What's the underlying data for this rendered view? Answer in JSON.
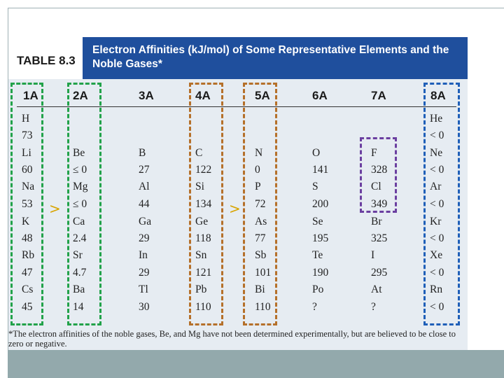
{
  "table": {
    "label": "TABLE 8.3",
    "title": "Electron Affinities (kJ/mol) of Some Representative Elements and the Noble Gases*",
    "columns": [
      {
        "group": "1A",
        "cells": [
          "H",
          "73",
          "Li",
          "60",
          "Na",
          "53",
          "K",
          "48",
          "Rb",
          "47",
          "Cs",
          "45"
        ]
      },
      {
        "group": "2A",
        "cells": [
          "",
          "",
          "Be",
          "≤ 0",
          "Mg",
          "≤ 0",
          "Ca",
          "2.4",
          "Sr",
          "4.7",
          "Ba",
          "14"
        ]
      },
      {
        "group": "3A",
        "cells": [
          "",
          "",
          "B",
          "27",
          "Al",
          "44",
          "Ga",
          "29",
          "In",
          "29",
          "Tl",
          "30"
        ]
      },
      {
        "group": "4A",
        "cells": [
          "",
          "",
          "C",
          "122",
          "Si",
          "134",
          "Ge",
          "118",
          "Sn",
          "121",
          "Pb",
          "110"
        ]
      },
      {
        "group": "5A",
        "cells": [
          "",
          "",
          "N",
          "0",
          "P",
          "72",
          "As",
          "77",
          "Sb",
          "101",
          "Bi",
          "110"
        ]
      },
      {
        "group": "6A",
        "cells": [
          "",
          "",
          "O",
          "141",
          "S",
          "200",
          "Se",
          "195",
          "Te",
          "190",
          "Po",
          "?"
        ]
      },
      {
        "group": "7A",
        "cells": [
          "",
          "",
          "F",
          "328",
          "Cl",
          "349",
          "Br",
          "325",
          "I",
          "295",
          "At",
          "?"
        ]
      },
      {
        "group": "8A",
        "cells": [
          "He",
          "< 0",
          "Ne",
          "< 0",
          "Ar",
          "< 0",
          "Kr",
          "< 0",
          "Xe",
          "< 0",
          "Rn",
          "< 0"
        ]
      }
    ],
    "footnote": "*The electron affinities of the noble gases, Be, and Mg have not been determined experimentally, but are believed to be close to zero or negative."
  },
  "annotations": {
    "marker_symbol": ">",
    "colors": {
      "green": "#22a24a",
      "brown": "#b5702a",
      "purple": "#6b3fa0",
      "blue": "#1f5fb8",
      "marker": "#d8a400"
    }
  },
  "style": {
    "header_color": "#1f4f9d",
    "table_background": "#e6ecf2",
    "bottom_bar_color": "#93a9ac"
  }
}
